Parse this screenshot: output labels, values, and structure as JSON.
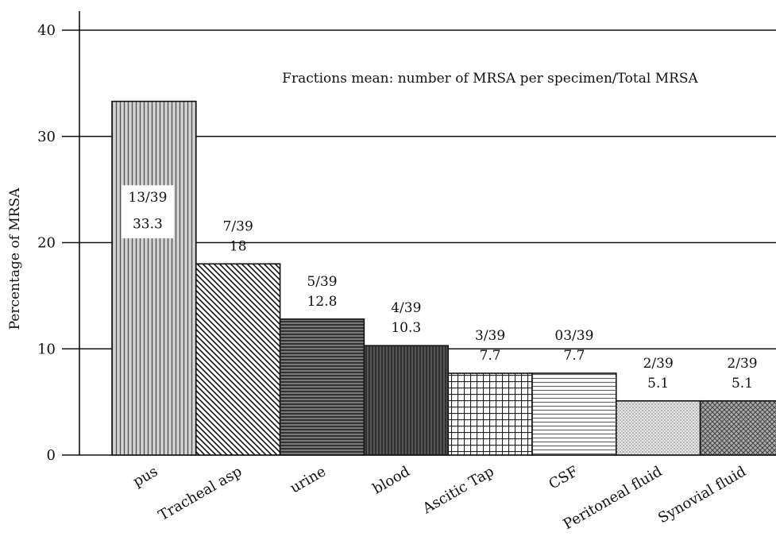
{
  "chart_data": {
    "type": "bar",
    "categories": [
      "pus",
      "Tracheal asp",
      "urine",
      "blood",
      "Ascitic Tap",
      "CSF",
      "Peritoneal fluid",
      "Synovial fluid"
    ],
    "values": [
      33.3,
      18,
      12.8,
      10.3,
      7.7,
      7.7,
      5.1,
      5.1
    ],
    "fractions": [
      "13/39",
      "7/39",
      "5/39",
      "4/39",
      "3/39",
      "03/39",
      "2/39",
      "2/39"
    ],
    "value_labels": [
      "33.3",
      "18",
      "12.8",
      "10.3",
      "7.7",
      "7.7",
      "5.1",
      "5.1"
    ],
    "title": "",
    "annotation": "Fractions mean: number of MRSA per specimen/Total MRSA",
    "xlabel": "",
    "ylabel": "Percentage of MRSA",
    "ylim": [
      0,
      40
    ],
    "yticks": [
      0,
      10,
      20,
      30,
      40
    ],
    "grid": true,
    "patterns": [
      "vertical-lines",
      "diagonal-lines",
      "horizontal-lines-dense",
      "dense-dark-lines",
      "grid",
      "horizontal-lines",
      "dots",
      "crosshatch"
    ]
  }
}
